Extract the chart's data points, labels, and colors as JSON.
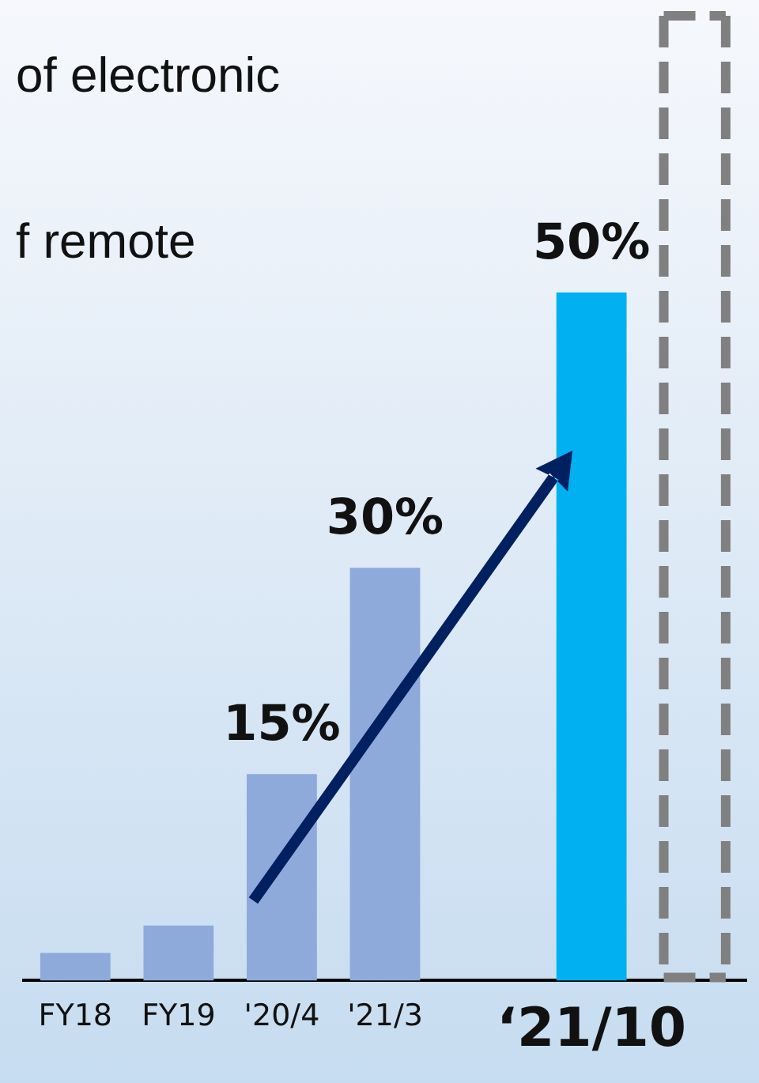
{
  "chart_data": {
    "type": "bar",
    "categories": [
      "FY18",
      "FY19",
      "'20/4",
      "'21/3",
      null,
      "‘21/10",
      null
    ],
    "values": [
      2,
      4,
      15,
      30,
      null,
      50,
      null
    ],
    "colors": [
      "#8eaadb",
      "#8eaadb",
      "#8eaadb",
      "#8eaadb",
      "#8eaadb",
      "#00b0f0",
      "#8eaadb"
    ],
    "value_labels": [
      null,
      null,
      "15%",
      "30%",
      null,
      "50%",
      null
    ],
    "tick_labels": "x",
    "grid": false,
    "legend": false,
    "annotations": [
      "of electronic",
      "f remote"
    ]
  }
}
